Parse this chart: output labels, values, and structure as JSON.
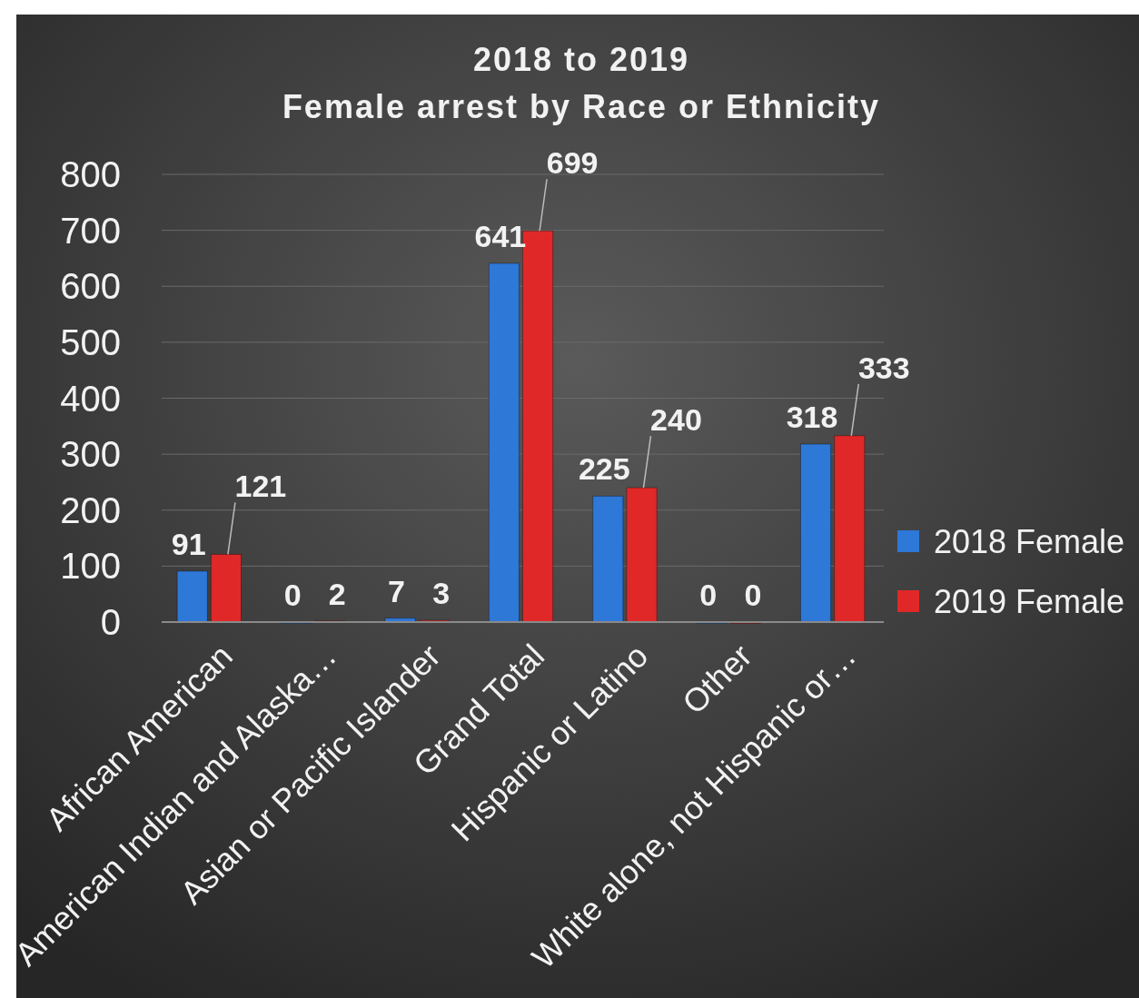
{
  "chart_data": {
    "type": "bar",
    "title": "2018 to 2019\nFemale arrest by Race or Ethnicity",
    "categories": [
      "African American",
      "American Indian and Alaska…",
      "Asian or Pacific Islander",
      "Grand Total",
      "Hispanic or Latino",
      "Other",
      "White alone, not Hispanic or…"
    ],
    "series": [
      {
        "name": "2018 Female",
        "color": "#2e78d8",
        "values": [
          91,
          0,
          7,
          641,
          225,
          0,
          318
        ]
      },
      {
        "name": "2019 Female",
        "color": "#e02828",
        "values": [
          121,
          2,
          3,
          699,
          240,
          0,
          333
        ]
      }
    ],
    "ylim": [
      0,
      800
    ],
    "yticks": [
      0,
      100,
      200,
      300,
      400,
      500,
      600,
      700,
      800
    ],
    "grid": "y",
    "legend": "right",
    "data_labels": true
  }
}
